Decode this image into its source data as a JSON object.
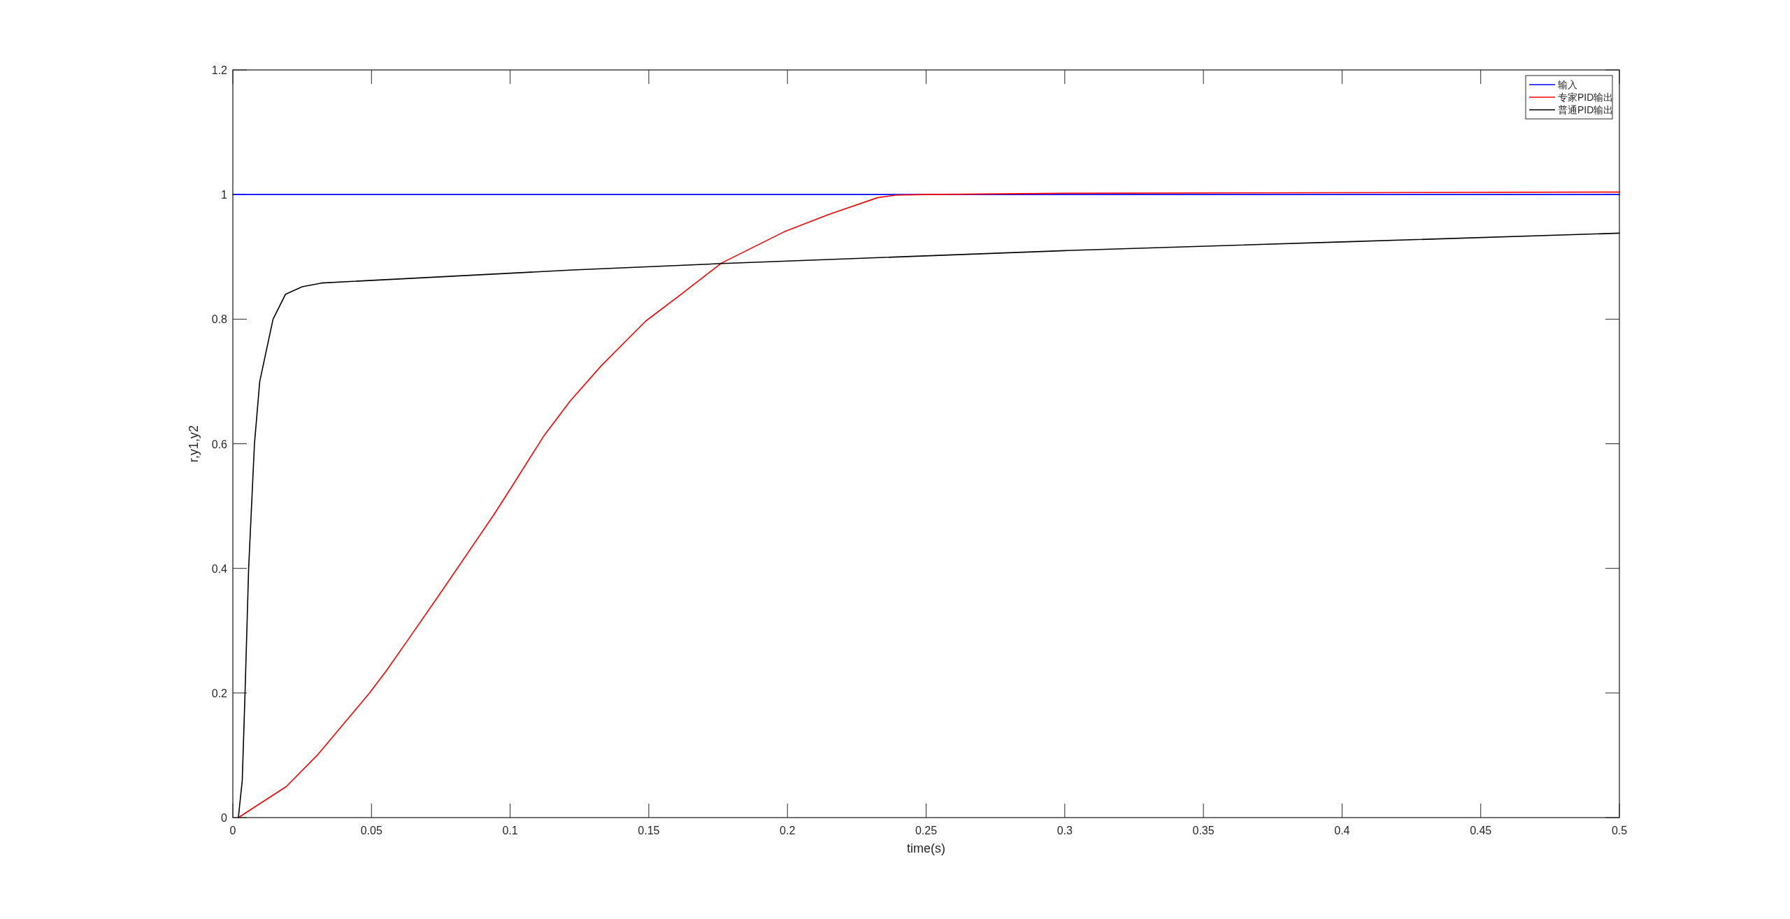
{
  "chart_data": {
    "type": "line",
    "xlabel": "time(s)",
    "ylabel": "r,y1,y2",
    "xlim": [
      0,
      0.5
    ],
    "ylim": [
      0,
      1.2
    ],
    "xticks": [
      0,
      0.05,
      0.1,
      0.15,
      0.2,
      0.25,
      0.3,
      0.35,
      0.4,
      0.45,
      0.5
    ],
    "yticks": [
      0,
      0.2,
      0.4,
      0.6,
      0.8,
      1,
      1.2
    ],
    "legend": "top right",
    "line_style": "solid",
    "marker": "none",
    "series": [
      {
        "name": "输入",
        "color": "#0000ff",
        "x": [
          0,
          0.5
        ],
        "values": [
          1,
          1
        ]
      },
      {
        "name": "专家PID输出",
        "color": "#ff0000",
        "x": [
          0.002,
          0.0193,
          0.0304,
          0.0493,
          0.0554,
          0.0631,
          0.0748,
          0.0941,
          0.1,
          0.1122,
          0.1215,
          0.1328,
          0.1489,
          0.1617,
          0.1762,
          0.1987,
          0.2148,
          0.2325,
          0.2389,
          0.25,
          0.3,
          0.4,
          0.5
        ],
        "values": [
          0,
          0.05,
          0.1,
          0.2,
          0.236,
          0.285,
          0.36,
          0.486,
          0.527,
          0.613,
          0.668,
          0.725,
          0.797,
          0.84,
          0.89,
          0.94,
          0.968,
          0.995,
          0.999,
          1.0,
          1.002,
          1.003,
          1.004
        ]
      },
      {
        "name": "普通PID输出",
        "color": "#000000",
        "x": [
          0.002,
          0.0034,
          0.0044,
          0.0057,
          0.0078,
          0.0097,
          0.0145,
          0.019,
          0.025,
          0.032,
          0.1226,
          0.175,
          0.3,
          0.4,
          0.5
        ],
        "values": [
          0,
          0.06,
          0.2,
          0.4,
          0.6,
          0.7,
          0.8,
          0.84,
          0.852,
          0.858,
          0.879,
          0.889,
          0.91,
          0.924,
          0.938
        ]
      }
    ]
  }
}
